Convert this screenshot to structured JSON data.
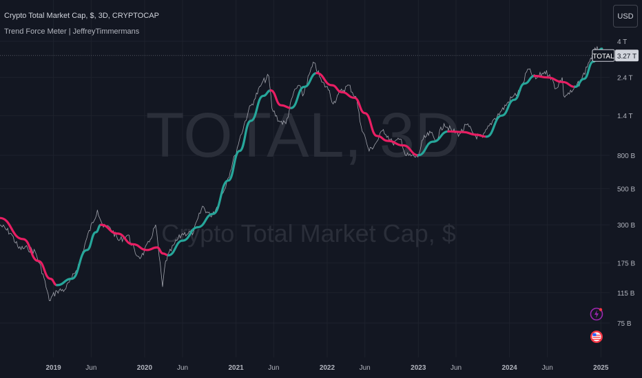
{
  "legend": {
    "title": "Crypto Total Market Cap, $, 3D, CRYPTOCAP",
    "indicator": "Trend Force Meter | JeffreyTimmermans"
  },
  "currency": "USD",
  "watermark": {
    "ticker": "TOTAL, 3D",
    "description": "Crypto Total Market Cap, $"
  },
  "price_tag": {
    "symbol": "TOTAL",
    "value": "3.27 T"
  },
  "icons": {
    "flash": "flash-icon",
    "flag": "us-flag-icon"
  },
  "colors": {
    "background": "#131722",
    "price_line": "#b2b5be",
    "uptrend": "#26a69a",
    "downtrend": "#e91e63",
    "grid": "#1e222d",
    "axis_text": "#b2b5be"
  },
  "chart_data": {
    "type": "line",
    "title": "Crypto Total Market Cap, $, 3D, CRYPTOCAP",
    "y_scale": "log",
    "grid": true,
    "y_ticks": [
      {
        "label": "4 T",
        "value": 4000
      },
      {
        "label": "2.4 T",
        "value": 2400
      },
      {
        "label": "1.4 T",
        "value": 1400
      },
      {
        "label": "800 B",
        "value": 800
      },
      {
        "label": "500 B",
        "value": 500
      },
      {
        "label": "300 B",
        "value": 300
      },
      {
        "label": "175 B",
        "value": 175
      },
      {
        "label": "115 B",
        "value": 115
      },
      {
        "label": "75 B",
        "value": 75
      }
    ],
    "x_ticks": [
      {
        "label": "2019",
        "date": "2019-01-01",
        "bold": true
      },
      {
        "label": "Jun",
        "date": "2019-06-01",
        "bold": false
      },
      {
        "label": "2020",
        "date": "2020-01-01",
        "bold": true
      },
      {
        "label": "Jun",
        "date": "2020-06-01",
        "bold": false
      },
      {
        "label": "2021",
        "date": "2021-01-01",
        "bold": true
      },
      {
        "label": "Jun",
        "date": "2021-06-01",
        "bold": false
      },
      {
        "label": "2022",
        "date": "2022-01-01",
        "bold": true
      },
      {
        "label": "Jun",
        "date": "2022-06-01",
        "bold": false
      },
      {
        "label": "2023",
        "date": "2023-01-01",
        "bold": true
      },
      {
        "label": "Jun",
        "date": "2023-06-01",
        "bold": false
      },
      {
        "label": "2024",
        "date": "2024-01-01",
        "bold": true
      },
      {
        "label": "Jun",
        "date": "2024-06-01",
        "bold": false
      },
      {
        "label": "2025",
        "date": "2025-01-01",
        "bold": true
      }
    ],
    "last_value": 3270,
    "series": [
      {
        "name": "Crypto Total Market Cap",
        "unit": "B",
        "points": [
          [
            "2018-06-01",
            300
          ],
          [
            "2018-07-15",
            265
          ],
          [
            "2018-08-15",
            215
          ],
          [
            "2018-09-20",
            215
          ],
          [
            "2018-10-20",
            205
          ],
          [
            "2018-11-20",
            150
          ],
          [
            "2018-12-15",
            103
          ],
          [
            "2019-01-15",
            118
          ],
          [
            "2019-02-15",
            120
          ],
          [
            "2019-03-15",
            140
          ],
          [
            "2019-04-15",
            175
          ],
          [
            "2019-05-15",
            250
          ],
          [
            "2019-06-26",
            370
          ],
          [
            "2019-07-20",
            290
          ],
          [
            "2019-08-15",
            290
          ],
          [
            "2019-09-20",
            240
          ],
          [
            "2019-10-27",
            260
          ],
          [
            "2019-11-25",
            200
          ],
          [
            "2019-12-18",
            190
          ],
          [
            "2020-01-20",
            235
          ],
          [
            "2020-02-14",
            300
          ],
          [
            "2020-03-13",
            125
          ],
          [
            "2020-03-25",
            180
          ],
          [
            "2020-04-30",
            230
          ],
          [
            "2020-06-01",
            265
          ],
          [
            "2020-07-15",
            270
          ],
          [
            "2020-08-20",
            390
          ],
          [
            "2020-09-20",
            340
          ],
          [
            "2020-10-20",
            390
          ],
          [
            "2020-11-25",
            550
          ],
          [
            "2020-12-28",
            800
          ],
          [
            "2021-01-15",
            1000
          ],
          [
            "2021-02-20",
            1500
          ],
          [
            "2021-03-15",
            1750
          ],
          [
            "2021-04-14",
            2200
          ],
          [
            "2021-05-12",
            2450
          ],
          [
            "2021-05-25",
            1550
          ],
          [
            "2021-06-22",
            1300
          ],
          [
            "2021-07-20",
            1250
          ],
          [
            "2021-08-20",
            1950
          ],
          [
            "2021-09-10",
            2150
          ],
          [
            "2021-09-25",
            1850
          ],
          [
            "2021-10-25",
            2600
          ],
          [
            "2021-11-10",
            2950
          ],
          [
            "2021-12-10",
            2250
          ],
          [
            "2022-01-10",
            2000
          ],
          [
            "2022-01-25",
            1650
          ],
          [
            "2022-02-15",
            1900
          ],
          [
            "2022-03-29",
            2150
          ],
          [
            "2022-04-30",
            1750
          ],
          [
            "2022-05-12",
            1300
          ],
          [
            "2022-06-18",
            850
          ],
          [
            "2022-07-15",
            950
          ],
          [
            "2022-08-14",
            1150
          ],
          [
            "2022-09-20",
            950
          ],
          [
            "2022-10-25",
            1000
          ],
          [
            "2022-11-10",
            800
          ],
          [
            "2022-12-30",
            780
          ],
          [
            "2023-01-20",
            1000
          ],
          [
            "2023-02-20",
            1100
          ],
          [
            "2023-03-10",
            980
          ],
          [
            "2023-04-14",
            1250
          ],
          [
            "2023-05-15",
            1130
          ],
          [
            "2023-06-15",
            1080
          ],
          [
            "2023-07-14",
            1230
          ],
          [
            "2023-08-18",
            1050
          ],
          [
            "2023-09-15",
            1030
          ],
          [
            "2023-10-25",
            1300
          ],
          [
            "2023-11-30",
            1500
          ],
          [
            "2024-01-10",
            1800
          ],
          [
            "2024-02-15",
            2000
          ],
          [
            "2024-03-14",
            2700
          ],
          [
            "2024-04-15",
            2350
          ],
          [
            "2024-05-20",
            2600
          ],
          [
            "2024-06-10",
            2500
          ],
          [
            "2024-07-05",
            2050
          ],
          [
            "2024-07-30",
            2400
          ],
          [
            "2024-08-05",
            1850
          ],
          [
            "2024-09-06",
            1950
          ],
          [
            "2024-10-15",
            2300
          ],
          [
            "2024-11-12",
            2950
          ],
          [
            "2024-12-17",
            3700
          ],
          [
            "2025-01-05",
            3400
          ],
          [
            "2025-01-14",
            3270
          ]
        ]
      },
      {
        "name": "Trend Force Meter",
        "segments": [
          {
            "trend": "down",
            "points": [
              [
                "2018-06-01",
                330
              ],
              [
                "2018-09-01",
                245
              ],
              [
                "2018-11-01",
                180
              ],
              [
                "2018-12-20",
                140
              ],
              [
                "2019-01-15",
                128
              ]
            ]
          },
          {
            "trend": "up",
            "points": [
              [
                "2019-01-15",
                128
              ],
              [
                "2019-03-15",
                140
              ],
              [
                "2019-05-15",
                210
              ],
              [
                "2019-06-20",
                270
              ],
              [
                "2019-07-10",
                300
              ]
            ]
          },
          {
            "trend": "down",
            "points": [
              [
                "2019-07-10",
                300
              ],
              [
                "2019-09-15",
                265
              ],
              [
                "2019-11-15",
                228
              ],
              [
                "2020-01-10",
                210
              ],
              [
                "2020-02-20",
                218
              ],
              [
                "2020-03-15",
                200
              ],
              [
                "2020-04-05",
                195
              ]
            ]
          },
          {
            "trend": "up",
            "points": [
              [
                "2020-04-05",
                195
              ],
              [
                "2020-06-01",
                240
              ],
              [
                "2020-08-01",
                290
              ],
              [
                "2020-10-01",
                350
              ],
              [
                "2020-12-01",
                560
              ],
              [
                "2021-01-15",
                850
              ],
              [
                "2021-03-01",
                1300
              ],
              [
                "2021-04-20",
                1850
              ],
              [
                "2021-05-20",
                2000
              ]
            ]
          },
          {
            "trend": "down",
            "points": [
              [
                "2021-05-20",
                2000
              ],
              [
                "2021-07-01",
                1620
              ],
              [
                "2021-08-10",
                1560
              ]
            ]
          },
          {
            "trend": "up",
            "points": [
              [
                "2021-08-10",
                1560
              ],
              [
                "2021-10-01",
                2100
              ],
              [
                "2021-11-20",
                2550
              ]
            ]
          },
          {
            "trend": "down",
            "points": [
              [
                "2021-11-20",
                2550
              ],
              [
                "2022-01-20",
                2150
              ],
              [
                "2022-03-01",
                1950
              ],
              [
                "2022-04-20",
                1800
              ],
              [
                "2022-06-01",
                1450
              ],
              [
                "2022-07-20",
                1050
              ],
              [
                "2022-09-01",
                980
              ],
              [
                "2022-11-01",
                920
              ],
              [
                "2023-01-01",
                800
              ]
            ]
          },
          {
            "trend": "up",
            "points": [
              [
                "2023-01-01",
                800
              ],
              [
                "2023-03-01",
                970
              ],
              [
                "2023-05-01",
                1120
              ]
            ]
          },
          {
            "trend": "down",
            "points": [
              [
                "2023-05-01",
                1120
              ],
              [
                "2023-07-01",
                1110
              ],
              [
                "2023-08-20",
                1070
              ],
              [
                "2023-10-01",
                1040
              ]
            ]
          },
          {
            "trend": "up",
            "points": [
              [
                "2023-10-01",
                1040
              ],
              [
                "2023-12-01",
                1400
              ],
              [
                "2024-01-20",
                1750
              ],
              [
                "2024-03-01",
                2200
              ],
              [
                "2024-04-10",
                2450
              ]
            ]
          },
          {
            "trend": "down",
            "points": [
              [
                "2024-04-10",
                2450
              ],
              [
                "2024-06-01",
                2400
              ],
              [
                "2024-08-01",
                2250
              ],
              [
                "2024-09-20",
                2100
              ]
            ]
          },
          {
            "trend": "up",
            "points": [
              [
                "2024-09-20",
                2100
              ],
              [
                "2024-10-25",
                2350
              ],
              [
                "2024-12-01",
                3000
              ],
              [
                "2025-01-05",
                3600
              ]
            ]
          }
        ]
      }
    ]
  }
}
